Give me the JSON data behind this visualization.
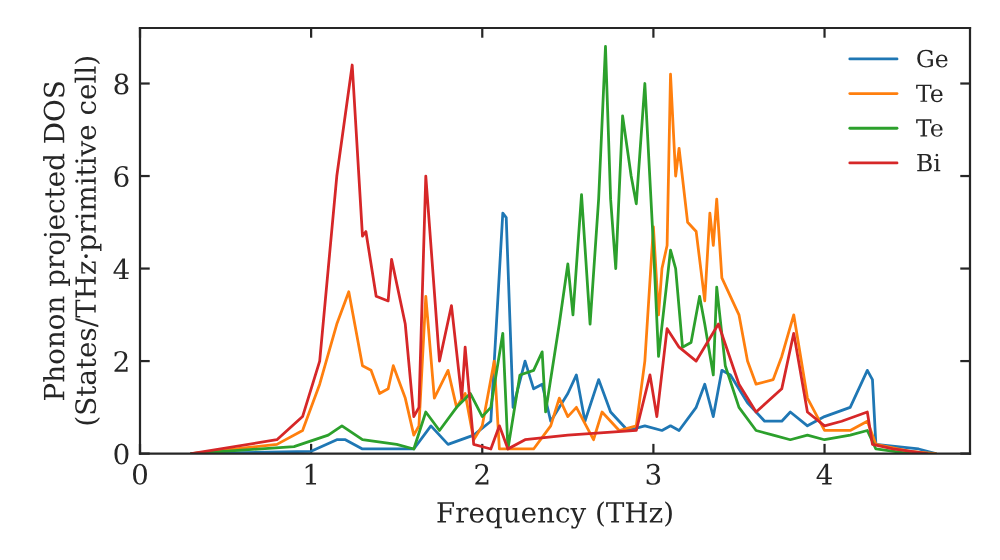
{
  "chart_data": {
    "type": "line",
    "xlabel": "Frequency (THz)",
    "ylabel": "Phonon projected DOS\n(States/THz·primitive cell)",
    "xlim": [
      0,
      4.85
    ],
    "ylim": [
      0,
      9.2
    ],
    "xticks": [
      0,
      1,
      2,
      3,
      4
    ],
    "yticks": [
      0,
      2,
      4,
      6,
      8
    ],
    "grid": false,
    "legend": "top right",
    "series": [
      {
        "name": "Ge",
        "color": "#1f77b4",
        "x": [
          0.3,
          1.0,
          1.15,
          1.2,
          1.3,
          1.6,
          1.7,
          1.8,
          1.95,
          2.05,
          2.12,
          2.14,
          2.18,
          2.25,
          2.3,
          2.35,
          2.4,
          2.5,
          2.55,
          2.6,
          2.68,
          2.75,
          2.85,
          2.95,
          3.05,
          3.1,
          3.15,
          3.25,
          3.3,
          3.35,
          3.4,
          3.45,
          3.55,
          3.65,
          3.75,
          3.8,
          3.9,
          4.0,
          4.15,
          4.25,
          4.28,
          4.3,
          4.55,
          4.65
        ],
        "values": [
          0,
          0.05,
          0.3,
          0.3,
          0.1,
          0.1,
          0.6,
          0.2,
          0.4,
          0.7,
          5.2,
          5.1,
          1.0,
          2.0,
          1.4,
          1.5,
          0.7,
          1.3,
          1.7,
          0.7,
          1.6,
          0.9,
          0.5,
          0.6,
          0.5,
          0.6,
          0.5,
          1.0,
          1.5,
          0.8,
          1.8,
          1.7,
          1.1,
          0.7,
          0.7,
          0.9,
          0.6,
          0.8,
          1.0,
          1.8,
          1.6,
          0.2,
          0.1,
          0
        ]
      },
      {
        "name": "Te",
        "color": "#ff7f0e",
        "x": [
          0.3,
          0.8,
          0.95,
          1.05,
          1.15,
          1.22,
          1.3,
          1.35,
          1.4,
          1.45,
          1.48,
          1.55,
          1.6,
          1.63,
          1.67,
          1.72,
          1.8,
          1.85,
          1.9,
          1.95,
          2.0,
          2.07,
          2.1,
          2.3,
          2.4,
          2.45,
          2.5,
          2.55,
          2.65,
          2.7,
          2.8,
          2.9,
          2.95,
          3.0,
          3.03,
          3.05,
          3.08,
          3.1,
          3.13,
          3.15,
          3.2,
          3.25,
          3.3,
          3.33,
          3.35,
          3.37,
          3.4,
          3.5,
          3.55,
          3.6,
          3.7,
          3.75,
          3.82,
          3.9,
          4.0,
          4.15,
          4.25,
          4.3,
          4.5,
          4.65
        ],
        "values": [
          0,
          0.2,
          0.5,
          1.5,
          2.8,
          3.5,
          1.9,
          1.8,
          1.3,
          1.4,
          1.9,
          1.2,
          0.4,
          0.6,
          3.4,
          1.2,
          1.8,
          1.0,
          1.3,
          0.3,
          0.6,
          2.0,
          0.1,
          0.1,
          0.6,
          1.2,
          0.8,
          1.0,
          0.3,
          0.9,
          0.5,
          0.6,
          2.0,
          4.9,
          3.0,
          4.0,
          4.5,
          8.2,
          6.0,
          6.6,
          5.0,
          4.8,
          3.3,
          5.2,
          4.5,
          5.5,
          3.8,
          3.0,
          2.0,
          1.5,
          1.6,
          2.1,
          3.0,
          1.2,
          0.5,
          0.5,
          0.7,
          0.2,
          0.05,
          0
        ]
      },
      {
        "name": "Te",
        "color": "#2ca02c",
        "x": [
          0.3,
          0.9,
          1.1,
          1.18,
          1.3,
          1.5,
          1.6,
          1.67,
          1.75,
          1.85,
          1.93,
          2.0,
          2.05,
          2.12,
          2.15,
          2.22,
          2.3,
          2.35,
          2.37,
          2.45,
          2.5,
          2.53,
          2.58,
          2.63,
          2.68,
          2.72,
          2.75,
          2.78,
          2.82,
          2.87,
          2.9,
          2.95,
          3.0,
          3.03,
          3.1,
          3.13,
          3.17,
          3.22,
          3.27,
          3.3,
          3.35,
          3.37,
          3.42,
          3.5,
          3.6,
          3.7,
          3.8,
          3.9,
          4.0,
          4.15,
          4.25,
          4.3,
          4.5
        ],
        "values": [
          0,
          0.15,
          0.4,
          0.6,
          0.3,
          0.2,
          0.1,
          0.9,
          0.5,
          1.0,
          1.3,
          0.8,
          1.0,
          2.6,
          0.1,
          1.7,
          1.8,
          2.2,
          0.9,
          2.8,
          4.1,
          3.0,
          5.6,
          2.8,
          5.5,
          8.8,
          5.5,
          4.0,
          7.3,
          6.0,
          5.4,
          8.0,
          4.5,
          2.1,
          4.4,
          4.0,
          2.3,
          2.4,
          3.4,
          2.8,
          1.7,
          3.6,
          1.9,
          1.0,
          0.5,
          0.4,
          0.3,
          0.4,
          0.3,
          0.4,
          0.5,
          0.1,
          0
        ]
      },
      {
        "name": "Bi",
        "color": "#d62728",
        "x": [
          0.3,
          0.8,
          0.95,
          1.05,
          1.1,
          1.15,
          1.24,
          1.3,
          1.32,
          1.38,
          1.45,
          1.47,
          1.55,
          1.6,
          1.63,
          1.67,
          1.75,
          1.82,
          1.88,
          1.9,
          1.95,
          2.05,
          2.1,
          2.15,
          2.25,
          2.5,
          2.9,
          2.98,
          3.02,
          3.08,
          3.15,
          3.25,
          3.38,
          3.5,
          3.6,
          3.75,
          3.82,
          3.9,
          4.0,
          4.1,
          4.25,
          4.28,
          4.4,
          4.6
        ],
        "values": [
          0,
          0.3,
          0.8,
          2.0,
          4.0,
          6.0,
          8.4,
          4.7,
          4.8,
          3.4,
          3.3,
          4.2,
          2.8,
          0.8,
          1.0,
          6.0,
          2.0,
          3.2,
          1.2,
          2.3,
          0.2,
          0.1,
          0.6,
          0.1,
          0.3,
          0.4,
          0.5,
          1.7,
          0.8,
          2.7,
          2.3,
          2.0,
          2.8,
          1.5,
          0.9,
          1.4,
          2.6,
          0.9,
          0.6,
          0.7,
          0.9,
          0.2,
          0.1,
          0
        ]
      }
    ]
  }
}
